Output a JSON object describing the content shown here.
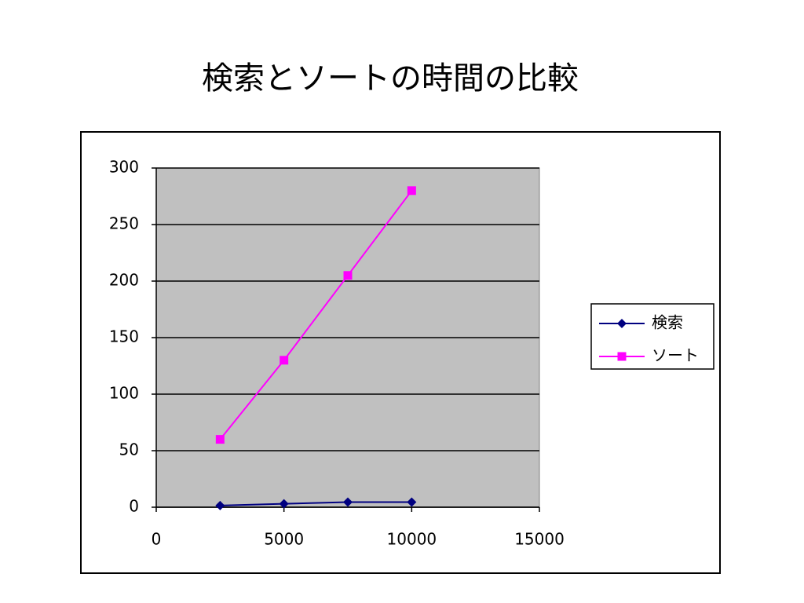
{
  "chart_data": {
    "type": "line",
    "title": "検索とソートの時間の比較",
    "x": [
      2500,
      5000,
      7500,
      10000
    ],
    "series": [
      {
        "name": "検索",
        "color": "#000080",
        "marker": "diamond",
        "values": [
          1.5,
          3,
          4.5,
          4.5
        ]
      },
      {
        "name": "ソート",
        "color": "#ff00ff",
        "marker": "square",
        "values": [
          60,
          130,
          205,
          280
        ]
      }
    ],
    "xlim": [
      0,
      15000
    ],
    "xticks": [
      0,
      5000,
      10000,
      15000
    ],
    "ylim": [
      0,
      300
    ],
    "yticks": [
      0,
      50,
      100,
      150,
      200,
      250,
      300
    ],
    "grid": true,
    "legend": "right",
    "plot_background": "#c0c0c0"
  }
}
